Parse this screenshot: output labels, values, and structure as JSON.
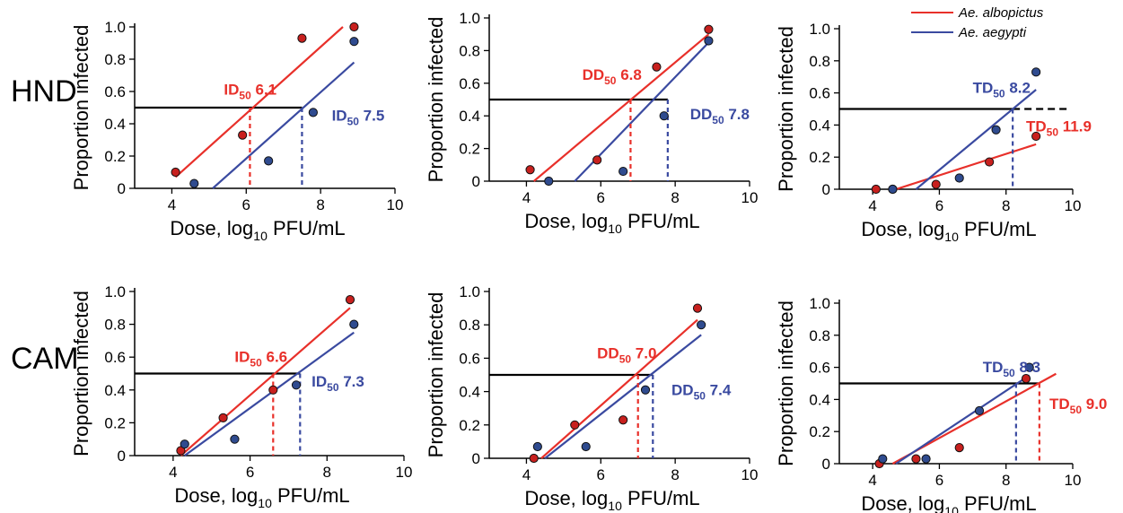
{
  "row_labels": [
    "HND",
    "CAM"
  ],
  "legend": [
    {
      "label": "Ae. albopictus",
      "color": "#e8302a"
    },
    {
      "label": "Ae. aegypti",
      "color": "#3a4aa0"
    }
  ],
  "axis_text": {
    "ylabel": "Proportion infected",
    "xlabel_prefix": "Dose, log",
    "xlabel_sub": "10",
    "xlabel_suffix": " PFU/mL"
  },
  "colors": {
    "albopictus": "#e8302a",
    "aegypti": "#3a4aa0",
    "reference": "#000000",
    "dot_fill_red": "#c8201e",
    "dot_fill_blue": "#2f4b8f"
  },
  "chart_data": [
    {
      "type": "scatter",
      "row": "HND",
      "ylabel": "Proportion infected",
      "xlabel": "Dose, log10 PFU/mL",
      "xlim": [
        3,
        10
      ],
      "ylim": [
        0,
        1.0
      ],
      "xticks": [
        4,
        6,
        8,
        10
      ],
      "yticks": [
        0,
        0.2,
        0.4,
        0.6,
        0.8,
        1.0
      ],
      "reference_y": 0.5,
      "series": [
        {
          "name": "Ae. albopictus",
          "color": "#e8302a",
          "x": [
            4.1,
            5.9,
            7.5,
            8.9
          ],
          "y": [
            0.1,
            0.33,
            0.93,
            1.0
          ],
          "fit": [
            [
              4.1,
              0.07
            ],
            [
              8.6,
              1.0
            ]
          ]
        },
        {
          "name": "Ae. aegypti",
          "color": "#3a4aa0",
          "x": [
            4.6,
            6.6,
            7.8,
            8.9
          ],
          "y": [
            0.03,
            0.17,
            0.47,
            0.91
          ],
          "fit": [
            [
              5.1,
              0.0
            ],
            [
              8.9,
              0.78
            ]
          ]
        }
      ],
      "annotations": [
        {
          "metric": "ID",
          "sub": "50",
          "value": " 6.1",
          "color": "#e8302a",
          "x": 6.1,
          "label_x": 5.4,
          "label_y": 0.58
        },
        {
          "metric": "ID",
          "sub": "50",
          "value": " 7.5",
          "color": "#3a4aa0",
          "x": 7.5,
          "label_x": 8.3,
          "label_y": 0.42
        }
      ]
    },
    {
      "type": "scatter",
      "row": "HND",
      "ylabel": "Proportion infected",
      "xlabel": "Dose, log10 PFU/mL",
      "xlim": [
        3,
        10
      ],
      "ylim": [
        0,
        1.0
      ],
      "xticks": [
        4,
        6,
        8,
        10
      ],
      "yticks": [
        0,
        0.2,
        0.4,
        0.6,
        0.8,
        1.0
      ],
      "reference_y": 0.5,
      "series": [
        {
          "name": "Ae. albopictus",
          "color": "#e8302a",
          "x": [
            4.1,
            5.9,
            7.5,
            8.9
          ],
          "y": [
            0.07,
            0.13,
            0.7,
            0.93
          ],
          "fit": [
            [
              4.2,
              0.0
            ],
            [
              8.9,
              0.9
            ]
          ]
        },
        {
          "name": "Ae. aegypti",
          "color": "#3a4aa0",
          "x": [
            4.6,
            6.6,
            7.7,
            8.9
          ],
          "y": [
            0.0,
            0.06,
            0.4,
            0.86
          ],
          "fit": [
            [
              5.3,
              0.0
            ],
            [
              8.9,
              0.85
            ]
          ]
        }
      ],
      "annotations": [
        {
          "metric": "DD",
          "sub": "50",
          "value": " 6.8",
          "color": "#e8302a",
          "x": 6.8,
          "label_x": 5.5,
          "label_y": 0.62
        },
        {
          "metric": "DD",
          "sub": "50",
          "value": " 7.8",
          "color": "#3a4aa0",
          "x": 7.8,
          "label_x": 8.4,
          "label_y": 0.38
        }
      ]
    },
    {
      "type": "scatter",
      "row": "HND",
      "ylabel": "Proportion infected",
      "xlabel": "Dose, log10 PFU/mL",
      "xlim": [
        3,
        10
      ],
      "ylim": [
        0,
        1.0
      ],
      "xticks": [
        4,
        6,
        8,
        10
      ],
      "yticks": [
        0,
        0.2,
        0.4,
        0.6,
        0.8,
        1.0
      ],
      "reference_y": 0.5,
      "series": [
        {
          "name": "Ae. albopictus",
          "color": "#e8302a",
          "x": [
            4.1,
            4.6,
            5.9,
            7.5,
            8.9
          ],
          "y": [
            0.0,
            0.0,
            0.03,
            0.17,
            0.33
          ],
          "fit": [
            [
              4.7,
              0.0
            ],
            [
              8.9,
              0.28
            ]
          ]
        },
        {
          "name": "Ae. aegypti",
          "color": "#3a4aa0",
          "x": [
            4.6,
            6.6,
            7.7,
            8.9
          ],
          "y": [
            0.0,
            0.07,
            0.37,
            0.73
          ],
          "fit": [
            [
              5.3,
              0.0
            ],
            [
              8.9,
              0.62
            ]
          ]
        }
      ],
      "annotations": [
        {
          "metric": "TD",
          "sub": "50",
          "value": " 8.2",
          "color": "#3a4aa0",
          "x": 8.2,
          "label_x": 7.0,
          "label_y": 0.6
        },
        {
          "metric": "TD",
          "sub": "50",
          "value": " 11.9",
          "color": "#e8302a",
          "x": null,
          "label_x": 8.6,
          "label_y": 0.36
        }
      ]
    },
    {
      "type": "scatter",
      "row": "CAM",
      "ylabel": "Proportion infected",
      "xlabel": "Dose, log10 PFU/mL",
      "xlim": [
        3,
        10
      ],
      "ylim": [
        0,
        1.0
      ],
      "xticks": [
        4,
        6,
        8,
        10
      ],
      "yticks": [
        0,
        0.2,
        0.4,
        0.6,
        0.8,
        1.0
      ],
      "reference_y": 0.5,
      "series": [
        {
          "name": "Ae. albopictus",
          "color": "#e8302a",
          "x": [
            4.2,
            5.3,
            6.6,
            8.6
          ],
          "y": [
            0.03,
            0.23,
            0.4,
            0.95
          ],
          "fit": [
            [
              4.2,
              0.0
            ],
            [
              8.6,
              0.9
            ]
          ]
        },
        {
          "name": "Ae. aegypti",
          "color": "#3a4aa0",
          "x": [
            4.3,
            5.6,
            7.2,
            8.7
          ],
          "y": [
            0.07,
            0.1,
            0.43,
            0.8
          ],
          "fit": [
            [
              4.3,
              0.0
            ],
            [
              8.7,
              0.75
            ]
          ]
        }
      ],
      "annotations": [
        {
          "metric": "ID",
          "sub": "50",
          "value": " 6.6",
          "color": "#e8302a",
          "x": 6.6,
          "label_x": 5.6,
          "label_y": 0.57
        },
        {
          "metric": "ID",
          "sub": "50",
          "value": " 7.3",
          "color": "#3a4aa0",
          "x": 7.3,
          "label_x": 7.6,
          "label_y": 0.42
        }
      ]
    },
    {
      "type": "scatter",
      "row": "CAM",
      "ylabel": "Proportion infected",
      "xlabel": "Dose, log10 PFU/mL",
      "xlim": [
        3,
        10
      ],
      "ylim": [
        0,
        1.0
      ],
      "xticks": [
        4,
        6,
        8,
        10
      ],
      "yticks": [
        0,
        0.2,
        0.4,
        0.6,
        0.8,
        1.0
      ],
      "reference_y": 0.5,
      "series": [
        {
          "name": "Ae. albopictus",
          "color": "#e8302a",
          "x": [
            4.2,
            5.3,
            6.6,
            8.6
          ],
          "y": [
            0.0,
            0.2,
            0.23,
            0.9
          ],
          "fit": [
            [
              4.4,
              0.0
            ],
            [
              8.6,
              0.83
            ]
          ]
        },
        {
          "name": "Ae. aegypti",
          "color": "#3a4aa0",
          "x": [
            4.3,
            5.6,
            7.2,
            8.7
          ],
          "y": [
            0.07,
            0.07,
            0.41,
            0.8
          ],
          "fit": [
            [
              4.5,
              0.0
            ],
            [
              8.7,
              0.74
            ]
          ]
        }
      ],
      "annotations": [
        {
          "metric": "DD",
          "sub": "50",
          "value": " 7.0",
          "color": "#e8302a",
          "x": 7.0,
          "label_x": 5.9,
          "label_y": 0.6
        },
        {
          "metric": "DD",
          "sub": "50",
          "value": " 7.4",
          "color": "#3a4aa0",
          "x": 7.4,
          "label_x": 7.9,
          "label_y": 0.38
        }
      ]
    },
    {
      "type": "scatter",
      "row": "CAM",
      "ylabel": "Proportion infected",
      "xlabel": "Dose, log10 PFU/mL",
      "xlim": [
        3,
        10
      ],
      "ylim": [
        0,
        1.0
      ],
      "xticks": [
        4,
        6,
        8,
        10
      ],
      "yticks": [
        0,
        0.2,
        0.4,
        0.6,
        0.8,
        1.0
      ],
      "reference_y": 0.5,
      "series": [
        {
          "name": "Ae. albopictus",
          "color": "#e8302a",
          "x": [
            4.2,
            5.3,
            6.6,
            8.6
          ],
          "y": [
            0.0,
            0.03,
            0.1,
            0.53
          ],
          "fit": [
            [
              4.6,
              0.0
            ],
            [
              9.5,
              0.56
            ]
          ]
        },
        {
          "name": "Ae. aegypti",
          "color": "#3a4aa0",
          "x": [
            4.3,
            5.6,
            7.2,
            8.7
          ],
          "y": [
            0.03,
            0.03,
            0.33,
            0.6
          ],
          "fit": [
            [
              4.7,
              0.0
            ],
            [
              8.7,
              0.55
            ]
          ]
        }
      ],
      "annotations": [
        {
          "metric": "TD",
          "sub": "50",
          "value": " 8.3",
          "color": "#3a4aa0",
          "x": 8.3,
          "label_x": 7.3,
          "label_y": 0.57
        },
        {
          "metric": "TD",
          "sub": "50",
          "value": " 9.0",
          "color": "#e8302a",
          "x": 9.0,
          "label_x": 9.3,
          "label_y": 0.34
        }
      ]
    }
  ]
}
